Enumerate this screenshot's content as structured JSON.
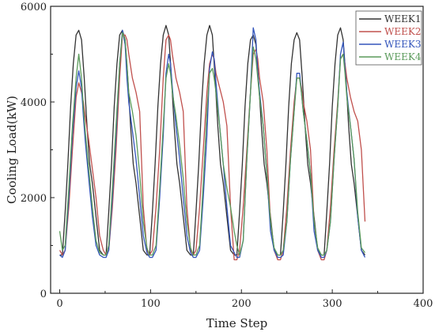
{
  "chart_data": {
    "type": "line",
    "title": "",
    "xlabel": "Time Step",
    "ylabel": "Cooling Load(kW)",
    "xlim": [
      -10,
      400
    ],
    "ylim": [
      0,
      6000
    ],
    "xticks": [
      0,
      100,
      200,
      300,
      400
    ],
    "yticks": [
      0,
      2000,
      4000,
      6000
    ],
    "xtick_labels": [
      "0",
      "100",
      "200",
      "300",
      "400"
    ],
    "ytick_labels": [
      "0",
      "2000",
      "4000",
      "6000"
    ],
    "grid": false,
    "legend": "top-right",
    "series": [
      {
        "name": "WEEK1",
        "color": "#333333",
        "x": [
          0,
          3,
          6,
          9,
          12,
          15,
          18,
          21,
          24,
          27,
          30,
          33,
          36,
          40,
          44,
          48,
          51,
          54,
          57,
          60,
          63,
          66,
          69,
          72,
          75,
          78,
          81,
          84,
          88,
          92,
          96,
          99,
          102,
          105,
          108,
          111,
          114,
          117,
          120,
          123,
          126,
          129,
          132,
          136,
          140,
          144,
          147,
          150,
          153,
          156,
          159,
          162,
          165,
          168,
          171,
          174,
          177,
          180,
          184,
          188,
          192,
          195,
          198,
          201,
          204,
          207,
          210,
          213,
          216,
          219,
          222,
          225,
          228,
          232,
          236,
          240,
          243,
          246,
          249,
          252,
          255,
          258,
          261,
          264,
          267,
          270,
          273,
          276,
          280,
          284,
          288,
          291,
          294,
          297,
          300,
          303,
          306,
          309,
          312,
          315,
          318,
          321,
          324,
          328,
          332,
          336
        ],
        "y": [
          800,
          800,
          1700,
          2700,
          3900,
          4800,
          5400,
          5500,
          5300,
          4500,
          3500,
          2700,
          2300,
          1600,
          900,
          800,
          800,
          1700,
          2700,
          3900,
          4800,
          5400,
          5500,
          5300,
          4500,
          3500,
          2700,
          2300,
          1600,
          900,
          800,
          800,
          1700,
          2700,
          3900,
          4800,
          5400,
          5600,
          5400,
          4500,
          3500,
          2700,
          2300,
          1600,
          900,
          800,
          800,
          1700,
          2700,
          3900,
          4800,
          5400,
          5600,
          5400,
          4500,
          3500,
          2700,
          2300,
          1600,
          900,
          800,
          800,
          1700,
          2700,
          3900,
          4800,
          5300,
          5400,
          5200,
          4400,
          3500,
          2700,
          2300,
          1600,
          900,
          800,
          800,
          1700,
          2700,
          3900,
          4800,
          5300,
          5450,
          5300,
          4500,
          3500,
          2700,
          2300,
          1600,
          900,
          800,
          800,
          1700,
          2700,
          3900,
          4800,
          5400,
          5550,
          5300,
          4500,
          3500,
          2700,
          2300,
          1600,
          900,
          800
        ]
      },
      {
        "name": "WEEK2",
        "color": "#c0504d",
        "x": [
          0,
          3,
          6,
          10,
          14,
          18,
          21,
          24,
          26,
          28,
          32,
          36,
          40,
          44,
          48,
          51,
          54,
          58,
          62,
          66,
          69,
          72,
          74,
          76,
          80,
          84,
          88,
          92,
          96,
          99,
          102,
          106,
          110,
          114,
          117,
          120,
          122,
          124,
          128,
          132,
          136,
          140,
          144,
          147,
          150,
          154,
          158,
          162,
          165,
          168,
          170,
          172,
          176,
          180,
          184,
          188,
          192,
          195,
          198,
          202,
          206,
          210,
          213,
          216,
          218,
          220,
          224,
          228,
          232,
          236,
          240,
          243,
          246,
          250,
          254,
          258,
          261,
          264,
          266,
          268,
          272,
          276,
          280,
          284,
          288,
          291,
          294,
          298,
          302,
          306,
          309,
          312,
          314,
          316,
          320,
          324,
          328,
          332,
          336
        ],
        "y": [
          900,
          800,
          900,
          1800,
          3000,
          4100,
          4400,
          4200,
          4000,
          3700,
          3200,
          2600,
          2000,
          1200,
          900,
          800,
          900,
          1800,
          3000,
          4500,
          5400,
          5400,
          5300,
          5000,
          4500,
          4200,
          3800,
          1800,
          900,
          800,
          900,
          1800,
          3000,
          4500,
          5300,
          5400,
          5300,
          5000,
          4500,
          4200,
          3800,
          1800,
          900,
          800,
          900,
          1800,
          3000,
          4200,
          4800,
          5000,
          4900,
          4600,
          4300,
          4000,
          3500,
          1800,
          700,
          700,
          900,
          1800,
          3000,
          4200,
          5000,
          5100,
          4900,
          4500,
          4000,
          3000,
          1500,
          900,
          700,
          700,
          900,
          1800,
          3000,
          4000,
          4500,
          4500,
          4300,
          4000,
          3600,
          3000,
          1500,
          900,
          700,
          700,
          900,
          1800,
          3000,
          4000,
          4900,
          5000,
          4800,
          4500,
          4100,
          3800,
          3600,
          3000,
          1500
        ]
      },
      {
        "name": "WEEK3",
        "color": "#3355bb",
        "x": [
          0,
          3,
          6,
          10,
          14,
          18,
          21,
          24,
          26,
          28,
          32,
          36,
          40,
          44,
          48,
          51,
          54,
          58,
          62,
          66,
          69,
          72,
          74,
          76,
          80,
          84,
          88,
          92,
          96,
          99,
          102,
          106,
          110,
          114,
          117,
          120,
          122,
          124,
          128,
          132,
          136,
          140,
          144,
          147,
          150,
          154,
          158,
          162,
          165,
          168,
          170,
          172,
          176,
          180,
          184,
          188,
          192,
          195,
          198,
          202,
          206,
          210,
          213,
          216,
          218,
          220,
          224,
          228,
          232,
          236,
          240,
          243,
          246,
          250,
          254,
          258,
          261,
          264,
          266,
          268,
          272,
          276,
          280,
          284,
          288,
          291,
          294,
          298,
          302,
          306,
          309,
          312,
          314,
          316,
          320,
          324,
          328,
          332,
          336
        ],
        "y": [
          800,
          750,
          900,
          2000,
          3300,
          4300,
          4650,
          4300,
          3700,
          3200,
          2400,
          1600,
          1000,
          800,
          750,
          750,
          900,
          2000,
          3300,
          4800,
          5500,
          5200,
          4500,
          4000,
          3400,
          2800,
          2000,
          1200,
          850,
          750,
          750,
          900,
          2000,
          3300,
          4600,
          5000,
          4800,
          4300,
          3500,
          2800,
          2000,
          1200,
          850,
          750,
          750,
          900,
          2000,
          3300,
          4700,
          5050,
          4900,
          4400,
          3500,
          2700,
          1800,
          1000,
          850,
          750,
          750,
          1100,
          2800,
          4200,
          5550,
          5300,
          4600,
          4200,
          3500,
          2500,
          1300,
          900,
          750,
          750,
          800,
          1500,
          2800,
          3800,
          4600,
          4600,
          4200,
          3800,
          3200,
          2500,
          1300,
          900,
          750,
          750,
          900,
          1500,
          2800,
          3900,
          5000,
          5250,
          4700,
          4200,
          3500,
          2800,
          1600,
          900,
          750
        ]
      },
      {
        "name": "WEEK4",
        "color": "#5a9a5a",
        "x": [
          0,
          3,
          6,
          10,
          14,
          18,
          21,
          24,
          26,
          28,
          32,
          36,
          40,
          44,
          48,
          51,
          54,
          58,
          62,
          66,
          69,
          72,
          74,
          76,
          80,
          84,
          88,
          92,
          96,
          99,
          102,
          106,
          110,
          114,
          117,
          120,
          122,
          124,
          128,
          132,
          136,
          140,
          144,
          147,
          150,
          154,
          158,
          162,
          165,
          168,
          170,
          172,
          176,
          180,
          184,
          188,
          192,
          195,
          198,
          202,
          206,
          210,
          213,
          216,
          218,
          220,
          224,
          228,
          232,
          236,
          240,
          243,
          246,
          250,
          254,
          258,
          261,
          264,
          266,
          268,
          272,
          276,
          280,
          284,
          288,
          291,
          294,
          298,
          302,
          306,
          309,
          312,
          314,
          316,
          320,
          324,
          328,
          332,
          336
        ],
        "y": [
          1300,
          900,
          1000,
          2200,
          3500,
          4500,
          5000,
          4500,
          3900,
          3400,
          2600,
          1800,
          1100,
          850,
          800,
          800,
          1000,
          2200,
          3500,
          4800,
          5450,
          5300,
          4800,
          4200,
          3800,
          3300,
          2500,
          1500,
          950,
          800,
          800,
          1000,
          2200,
          3500,
          4500,
          4800,
          4600,
          4200,
          3700,
          3100,
          2400,
          1500,
          950,
          800,
          800,
          1000,
          2300,
          3800,
          4600,
          4700,
          4500,
          4200,
          3500,
          2700,
          2200,
          1800,
          1300,
          1000,
          800,
          1100,
          2800,
          4200,
          5150,
          4900,
          4500,
          4100,
          3500,
          2500,
          1500,
          950,
          800,
          800,
          900,
          1500,
          2800,
          3800,
          4500,
          4500,
          4200,
          3800,
          3200,
          2500,
          1500,
          950,
          800,
          800,
          900,
          1500,
          2800,
          3900,
          4900,
          5000,
          4600,
          4100,
          3500,
          2800,
          1700,
          950,
          850
        ]
      }
    ]
  }
}
